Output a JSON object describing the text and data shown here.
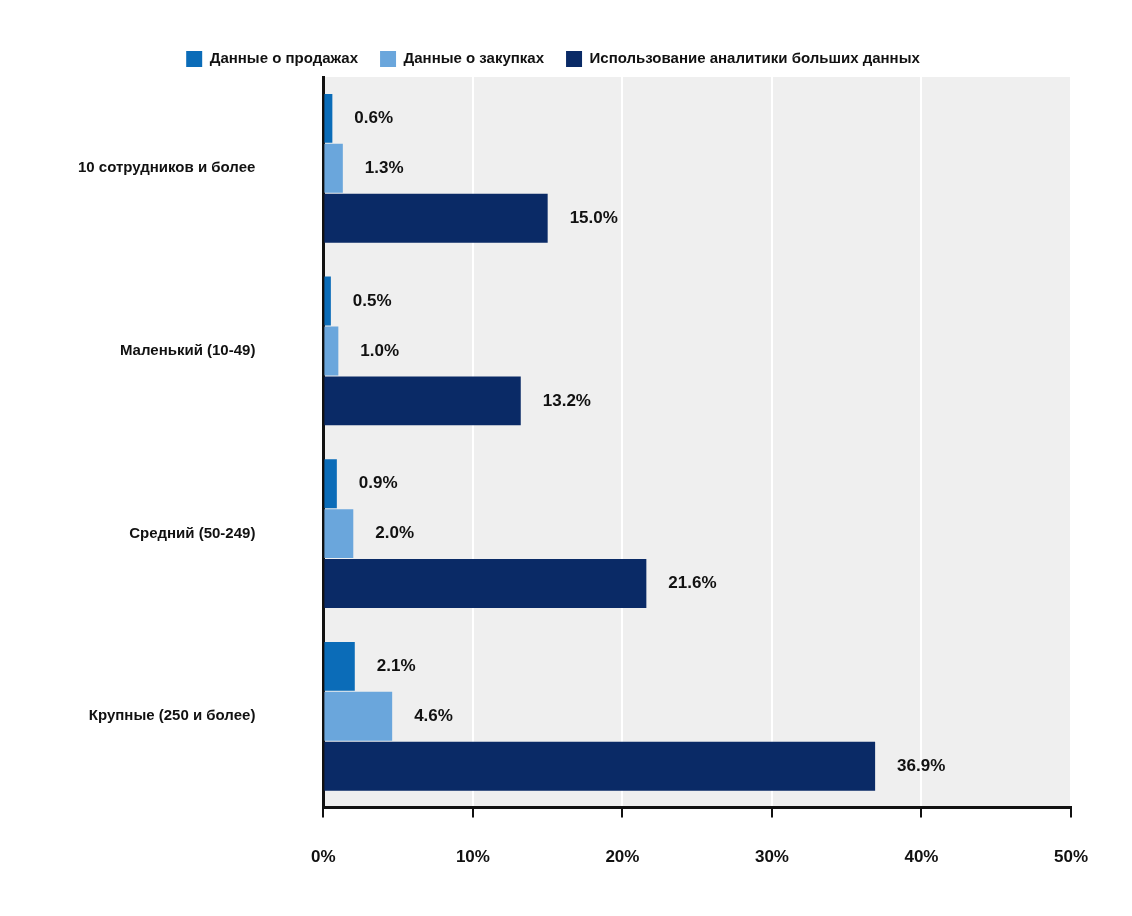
{
  "chart_data": {
    "type": "bar",
    "orientation": "horizontal",
    "categories": [
      "10 сотрудников и более",
      "Маленький (10-49)",
      "Средний (50-249)",
      "Крупные (250 и более)"
    ],
    "series": [
      {
        "name": "Данные о продажах",
        "color": "#0b6cb8",
        "values": [
          0.6,
          0.5,
          0.9,
          2.1
        ],
        "value_labels": [
          "0.6%",
          "0.5%",
          "0.9%",
          "2.1%"
        ]
      },
      {
        "name": "Данные о закупках",
        "color": "#6aa6dc",
        "values": [
          1.3,
          1.0,
          2.0,
          4.6
        ],
        "value_labels": [
          "1.3%",
          "1.0%",
          "2.0%",
          "4.6%"
        ]
      },
      {
        "name": "Использование аналитики больших данных",
        "color": "#0a2a66",
        "values": [
          15.0,
          13.2,
          21.6,
          36.9
        ],
        "value_labels": [
          "15.0%",
          "13.2%",
          "21.6%",
          "36.9%"
        ]
      }
    ],
    "xlim": [
      0,
      50
    ],
    "xticks": [
      {
        "value": 0,
        "label": "0%"
      },
      {
        "value": 10,
        "label": "10%"
      },
      {
        "value": 20,
        "label": "20%"
      },
      {
        "value": 30,
        "label": "30%"
      },
      {
        "value": 40,
        "label": "40%"
      },
      {
        "value": 50,
        "label": "50%"
      }
    ],
    "grid": "x",
    "legend": "top"
  }
}
